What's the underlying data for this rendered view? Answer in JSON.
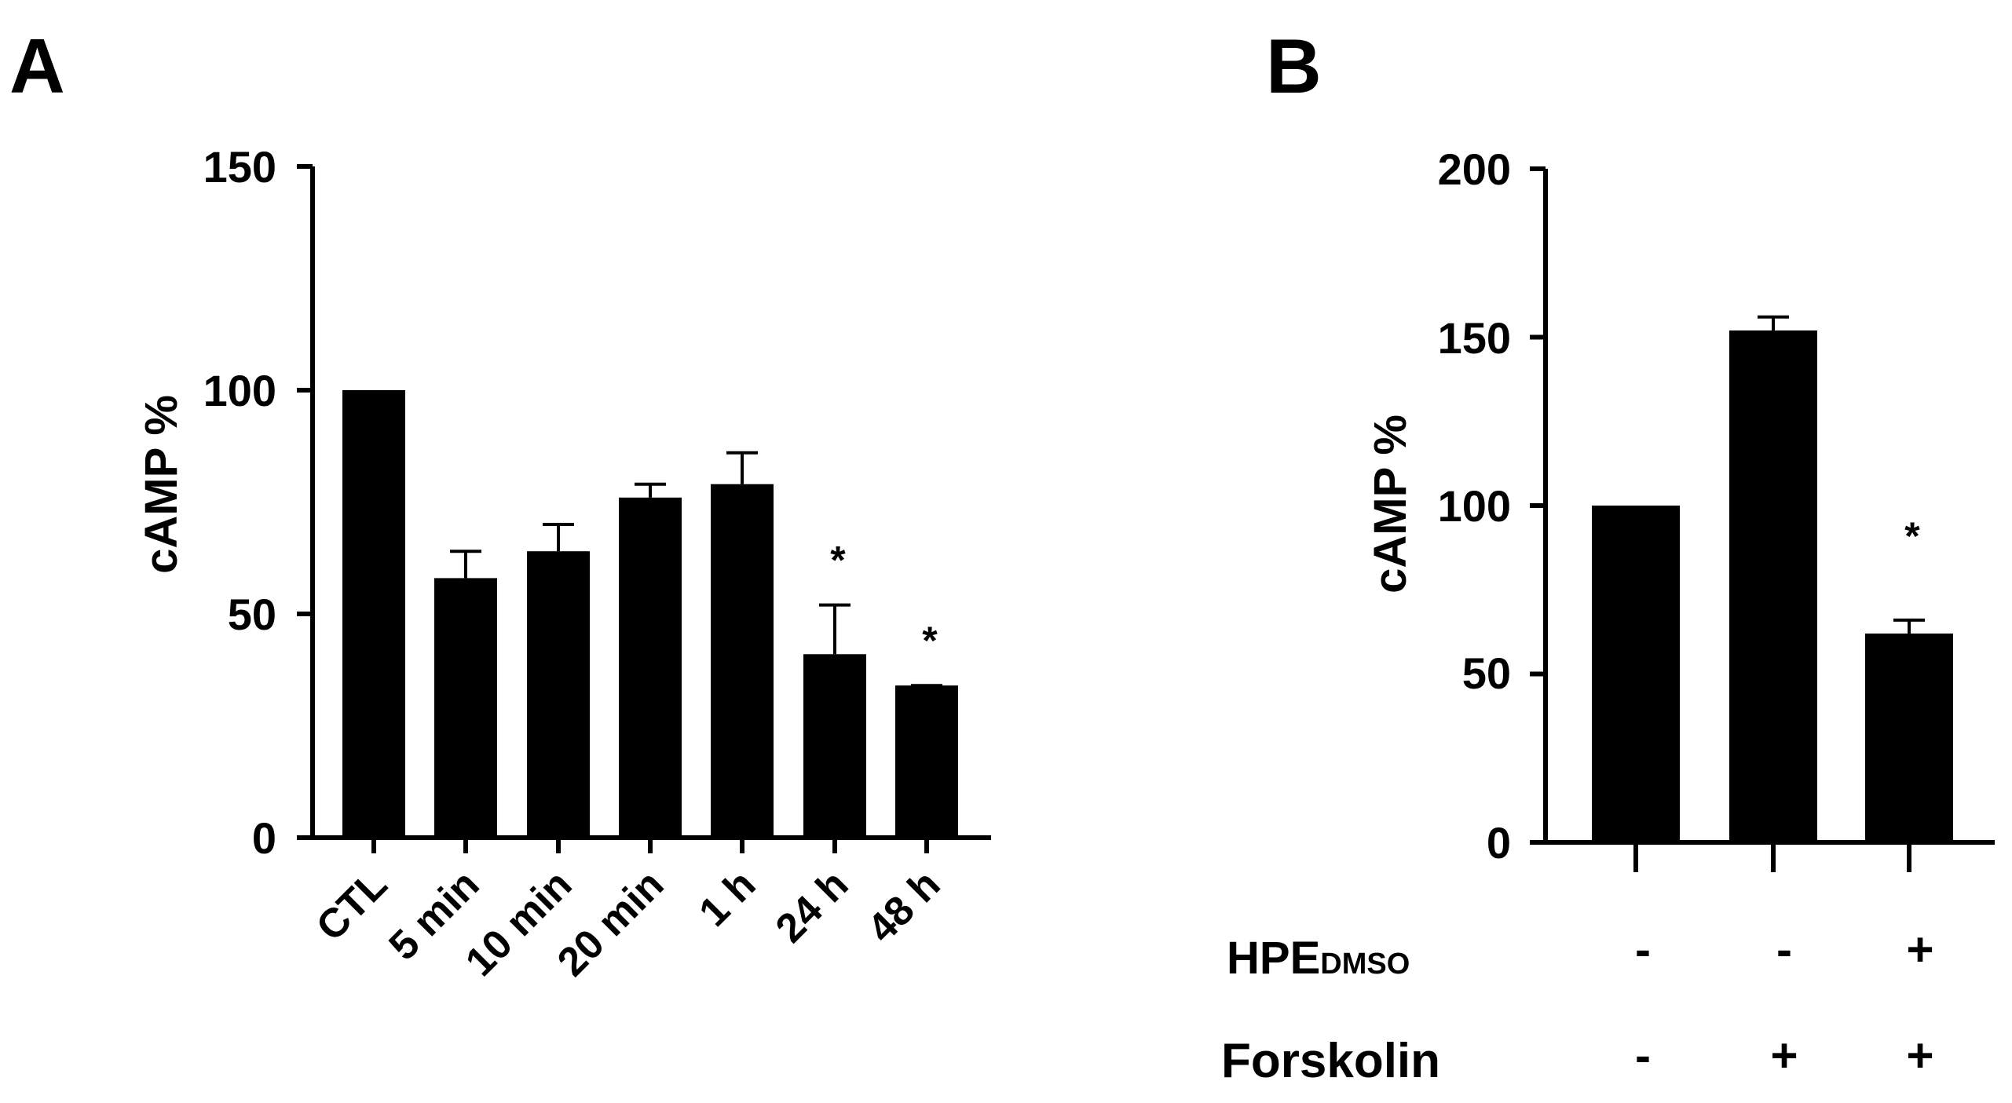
{
  "panels": [
    {
      "label": "A",
      "ylabel": "cAMP %",
      "yticks": [
        "0",
        "50",
        "100",
        "150"
      ],
      "categories": [
        "CTL",
        "5 min",
        "10 min",
        "20 min",
        "1 h",
        "24 h",
        "48 h"
      ]
    },
    {
      "label": "B",
      "ylabel": "cAMP %",
      "yticks": [
        "0",
        "50",
        "100",
        "150",
        "200"
      ],
      "treatments": [
        {
          "name": "HPE",
          "name_sub": "DMSO",
          "signs": [
            "-",
            "-",
            "+"
          ]
        },
        {
          "name": "Forskolin",
          "name_sub": "",
          "signs": [
            "-",
            "+",
            "+"
          ]
        }
      ]
    }
  ],
  "chart_data": [
    {
      "type": "bar",
      "panel": "A",
      "categories": [
        "CTL",
        "5 min",
        "10 min",
        "20 min",
        "1 h",
        "24 h",
        "48 h"
      ],
      "values": [
        100,
        58,
        64,
        76,
        79,
        41,
        34
      ],
      "error": [
        0,
        6,
        6,
        3,
        7,
        11,
        0
      ],
      "significance": [
        "",
        "",
        "",
        "",
        "",
        "*",
        "*"
      ],
      "ylabel": "cAMP %",
      "ylim": [
        0,
        150
      ],
      "yticks": [
        0,
        50,
        100,
        150
      ],
      "color": "#000000"
    },
    {
      "type": "bar",
      "panel": "B",
      "categories": [
        "- / -",
        "- / +",
        "+ / +"
      ],
      "values": [
        100,
        152,
        62
      ],
      "error": [
        0,
        4,
        4
      ],
      "significance": [
        "",
        "",
        "*"
      ],
      "ylabel": "cAMP %",
      "ylim": [
        0,
        200
      ],
      "yticks": [
        0,
        50,
        100,
        150,
        200
      ],
      "color": "#000000"
    }
  ]
}
